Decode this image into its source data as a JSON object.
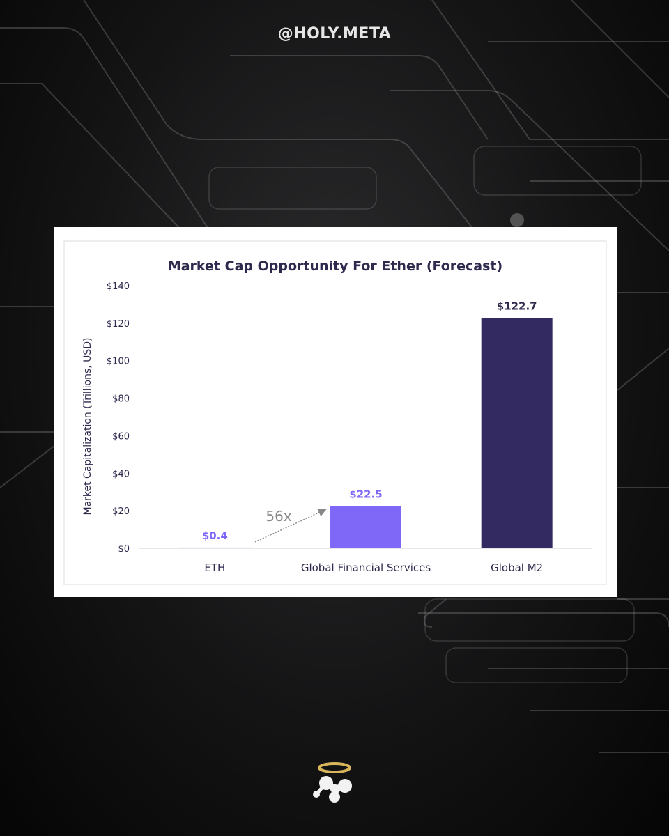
{
  "header": {
    "handle": "@HOLY.META"
  },
  "logo": {
    "icon": "holy-meta-halo-logo-icon"
  },
  "colors": {
    "title": "#2d2a4d",
    "axis_text": "#2d2a4d",
    "eth_bar": "#8e80f5",
    "gfs_bar": "#7f68f7",
    "m2_bar": "#322a61",
    "light_label": "#7f68f7",
    "dark_label": "#2d2a4d",
    "annotation": "#888888"
  },
  "chart_data": {
    "type": "bar",
    "title": "Market Cap Opportunity For Ether (Forecast)",
    "xlabel": "",
    "ylabel": "Market Capitalization (Trillions, USD)",
    "ylim": [
      0,
      140
    ],
    "yticks": [
      0,
      20,
      40,
      60,
      80,
      100,
      120,
      140
    ],
    "ytick_labels": [
      "$0",
      "$20",
      "$40",
      "$60",
      "$80",
      "$100",
      "$120",
      "$140"
    ],
    "categories": [
      "ETH",
      "Global Financial Services",
      "Global M2"
    ],
    "values": [
      0.4,
      22.5,
      122.7
    ],
    "value_labels": [
      "$0.4",
      "$22.5",
      "$122.7"
    ],
    "grid": false,
    "annotation": {
      "text": "56x",
      "from": "ETH",
      "to": "Global Financial Services"
    }
  }
}
